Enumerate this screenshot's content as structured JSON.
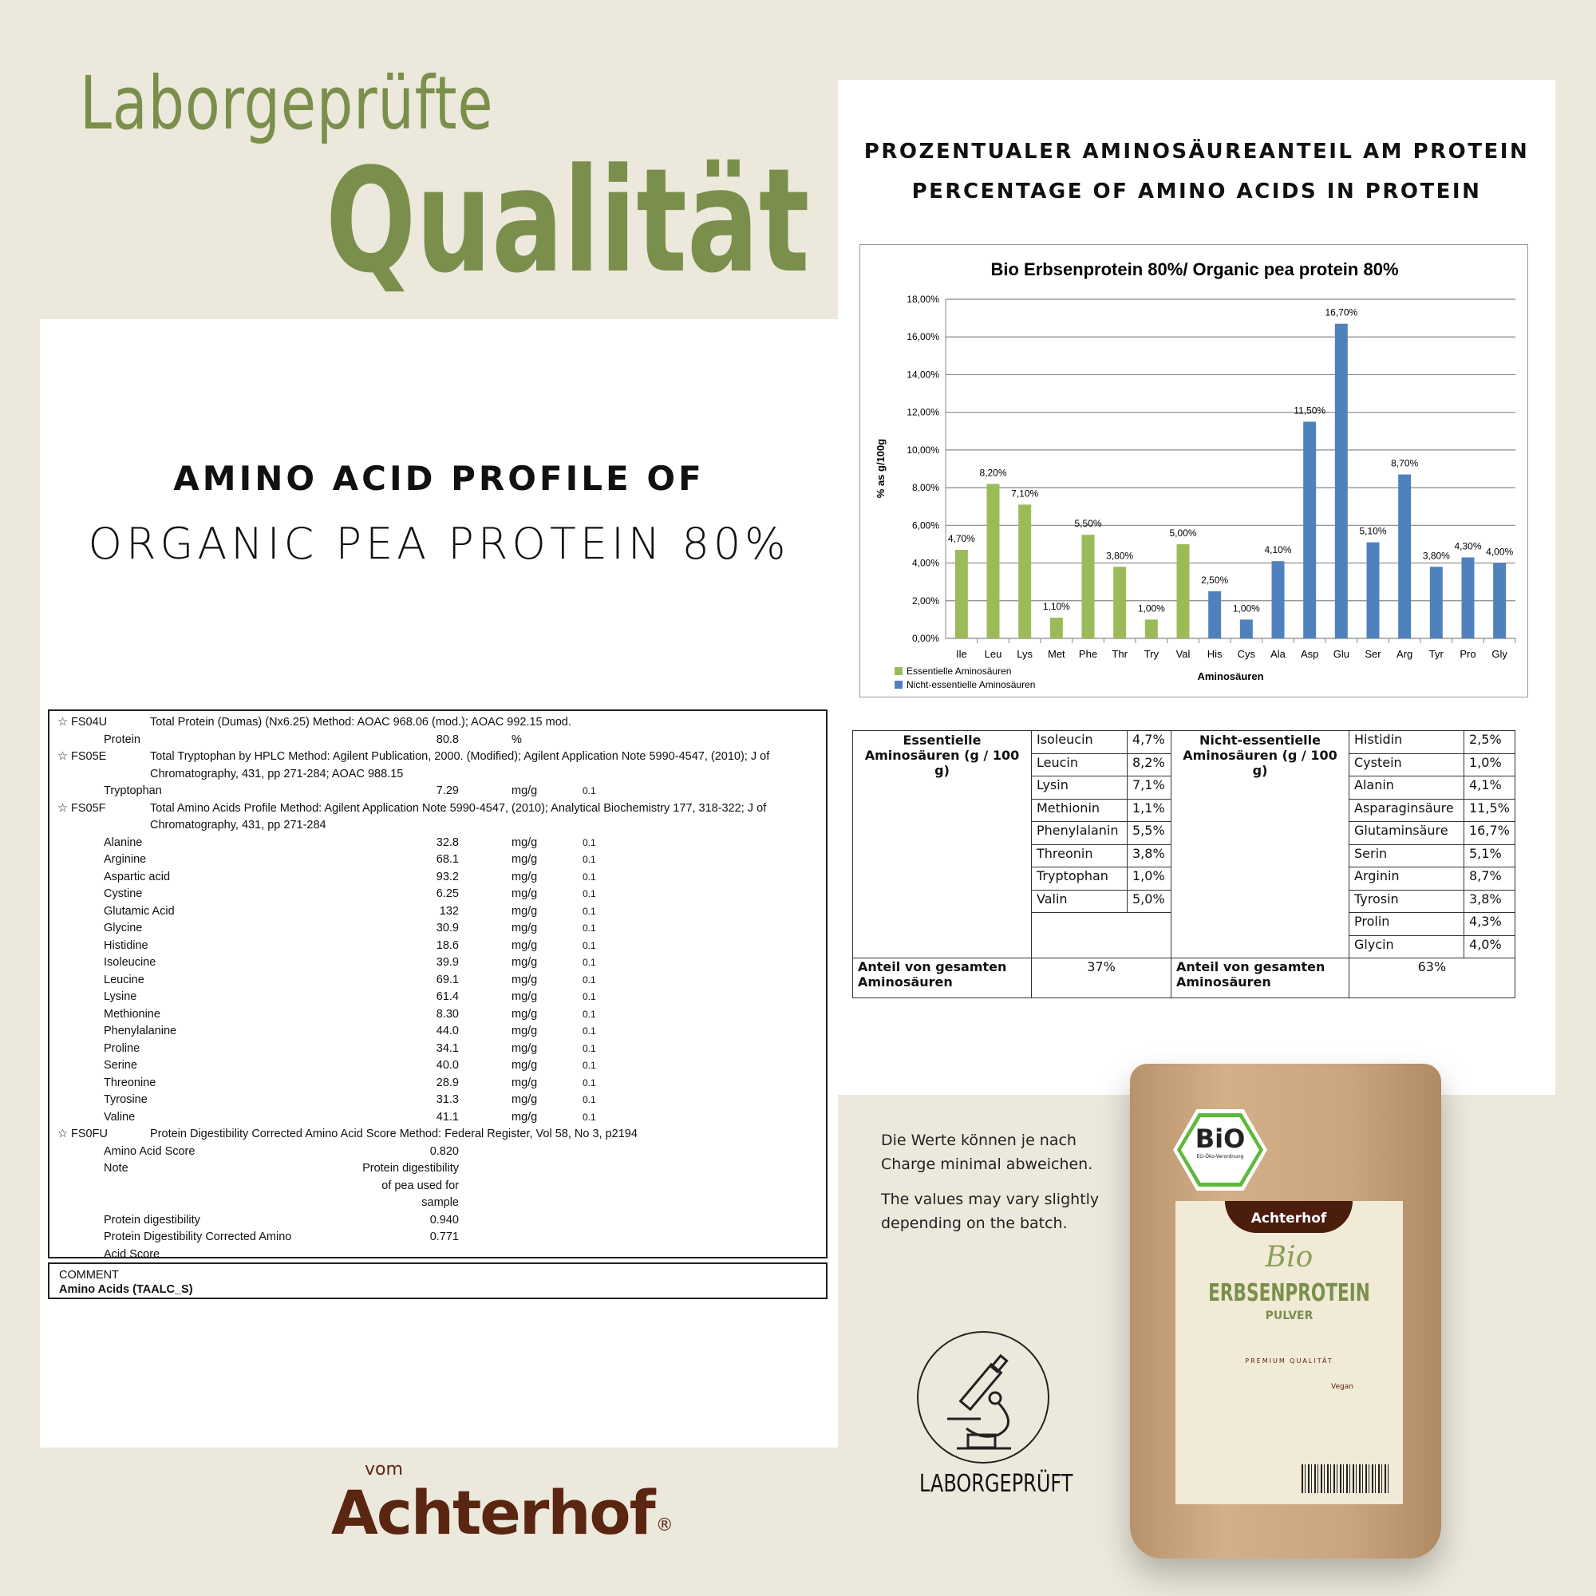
{
  "headline": {
    "line1": "Laborgeprüfte",
    "line2": "Qualität"
  },
  "left": {
    "title1": "AMINO ACID PROFILE OF",
    "title2": "ORGANIC PEA PROTEIN 80%"
  },
  "right": {
    "title1": "PROZENTUALER AMINOSÄUREANTEIL AM PROTEIN",
    "title2": "PERCENTAGE OF AMINO ACIDS IN PROTEIN"
  },
  "report": {
    "lines": [
      {
        "code": "☆ FS04U",
        "desc": "Total Protein (Dumas) (Nx6.25)    Method: AOAC 968.06 (mod.); AOAC 992.15 mod."
      },
      {
        "name": "Protein",
        "value": "80.8",
        "unit": "%",
        "loq": ""
      },
      {
        "code": "☆ FS05E",
        "desc": "Total Tryptophan by HPLC    Method: Agilent Publication, 2000. (Modified); Agilent Application Note 5990-4547, (2010); J of"
      },
      {
        "desc": "Chromatography, 431, pp 271-284; AOAC 988.15"
      },
      {
        "name": "Tryptophan",
        "value": "7.29",
        "unit": "mg/g",
        "loq": "0.1"
      },
      {
        "code": "☆ FS05F",
        "desc": "Total Amino Acids Profile    Method: Agilent Application Note 5990-4547, (2010); Analytical Biochemistry 177, 318-322; J of"
      },
      {
        "desc": "Chromatography, 431, pp 271-284"
      },
      {
        "name": "Alanine",
        "value": "32.8",
        "unit": "mg/g",
        "loq": "0.1"
      },
      {
        "name": "Arginine",
        "value": "68.1",
        "unit": "mg/g",
        "loq": "0.1"
      },
      {
        "name": "Aspartic acid",
        "value": "93.2",
        "unit": "mg/g",
        "loq": "0.1"
      },
      {
        "name": "Cystine",
        "value": "6.25",
        "unit": "mg/g",
        "loq": "0.1"
      },
      {
        "name": "Glutamic Acid",
        "value": "132",
        "unit": "mg/g",
        "loq": "0.1"
      },
      {
        "name": "Glycine",
        "value": "30.9",
        "unit": "mg/g",
        "loq": "0.1"
      },
      {
        "name": "Histidine",
        "value": "18.6",
        "unit": "mg/g",
        "loq": "0.1"
      },
      {
        "name": "Isoleucine",
        "value": "39.9",
        "unit": "mg/g",
        "loq": "0.1"
      },
      {
        "name": "Leucine",
        "value": "69.1",
        "unit": "mg/g",
        "loq": "0.1"
      },
      {
        "name": "Lysine",
        "value": "61.4",
        "unit": "mg/g",
        "loq": "0.1"
      },
      {
        "name": "Methionine",
        "value": "8.30",
        "unit": "mg/g",
        "loq": "0.1"
      },
      {
        "name": "Phenylalanine",
        "value": "44.0",
        "unit": "mg/g",
        "loq": "0.1"
      },
      {
        "name": "Proline",
        "value": "34.1",
        "unit": "mg/g",
        "loq": "0.1"
      },
      {
        "name": "Serine",
        "value": "40.0",
        "unit": "mg/g",
        "loq": "0.1"
      },
      {
        "name": "Threonine",
        "value": "28.9",
        "unit": "mg/g",
        "loq": "0.1"
      },
      {
        "name": "Tyrosine",
        "value": "31.3",
        "unit": "mg/g",
        "loq": "0.1"
      },
      {
        "name": "Valine",
        "value": "41.1",
        "unit": "mg/g",
        "loq": "0.1"
      },
      {
        "code": "☆ FS0FU",
        "desc": "Protein Digestibility Corrected Amino Acid Score    Method: Federal Register, Vol 58, No 3, p2194"
      },
      {
        "name": "Amino Acid Score",
        "value": "0.820"
      },
      {
        "name": "Note",
        "value": "Protein digestibility"
      },
      {
        "value": "of pea used for"
      },
      {
        "value": "sample"
      },
      {
        "name": "Protein digestibility",
        "value": "0.940"
      },
      {
        "name": "Protein Digestibility Corrected Amino",
        "value": "0.771"
      },
      {
        "name": "Acid Score"
      }
    ],
    "comment_label": "COMMENT",
    "comment_value": "Amino Acids (TAALC_S)"
  },
  "chart_data": {
    "type": "bar",
    "title": "Bio Erbsenprotein  80%/ Organic pea protein 80%",
    "xlabel": "Aminosäuren",
    "ylabel": "% as g/100g",
    "ylim": [
      0,
      18
    ],
    "yticks": [
      "0,00%",
      "2,00%",
      "4,00%",
      "6,00%",
      "8,00%",
      "10,00%",
      "12,00%",
      "14,00%",
      "16,00%",
      "18,00%"
    ],
    "grid": true,
    "legend_position": "bottom-left",
    "categories": [
      "Ile",
      "Leu",
      "Lys",
      "Met",
      "Phe",
      "Thr",
      "Try",
      "Val",
      "His",
      "Cys",
      "Ala",
      "Asp",
      "Glu",
      "Ser",
      "Arg",
      "Tyr",
      "Pro",
      "Gly"
    ],
    "values": [
      4.7,
      8.2,
      7.1,
      1.1,
      5.5,
      3.8,
      1.0,
      5.0,
      2.5,
      1.0,
      4.1,
      11.5,
      16.7,
      5.1,
      8.7,
      3.8,
      4.3,
      4.0
    ],
    "labels": [
      "4,70%",
      "8,20%",
      "7,10%",
      "1,10%",
      "5,50%",
      "3,80%",
      "1,00%",
      "5,00%",
      "2,50%",
      "1,00%",
      "4,10%",
      "11,50%",
      "16,70%",
      "5,10%",
      "8,70%",
      "3,80%",
      "4,30%",
      "4,00%"
    ],
    "group": [
      "e",
      "e",
      "e",
      "e",
      "e",
      "e",
      "e",
      "e",
      "n",
      "n",
      "n",
      "n",
      "n",
      "n",
      "n",
      "n",
      "n",
      "n"
    ],
    "series": [
      {
        "name": "Essentielle Aminosäuren",
        "color": "#9bbb59"
      },
      {
        "name": "Nicht-essentielle Aminosäuren",
        "color": "#4f81bd"
      }
    ]
  },
  "table": {
    "ess_header": "Essentielle Aminosäuren (g / 100 g)",
    "non_header": "Nicht-essentielle Aminosäuren (g / 100 g)",
    "essential": [
      [
        "Isoleucin",
        "4,7%"
      ],
      [
        "Leucin",
        "8,2%"
      ],
      [
        "Lysin",
        "7,1%"
      ],
      [
        "Methionin",
        "1,1%"
      ],
      [
        "Phenylalanin",
        "5,5%"
      ],
      [
        "Threonin",
        "3,8%"
      ],
      [
        "Tryptophan",
        "1,0%"
      ],
      [
        "Valin",
        "5,0%"
      ]
    ],
    "nonessential": [
      [
        "Histidin",
        "2,5%"
      ],
      [
        "Cystein",
        "1,0%"
      ],
      [
        "Alanin",
        "4,1%"
      ],
      [
        "Asparaginsäure",
        "11,5%"
      ],
      [
        "Glutaminsäure",
        "16,7%"
      ],
      [
        "Serin",
        "5,1%"
      ],
      [
        "Arginin",
        "8,7%"
      ],
      [
        "Tyrosin",
        "3,8%"
      ],
      [
        "Prolin",
        "4,3%"
      ],
      [
        "Glycin",
        "4,0%"
      ]
    ],
    "share_label": "Anteil von gesamten Aminosäuren",
    "ess_share": "37%",
    "non_share": "63%"
  },
  "note": {
    "de1": "Die Werte können je nach",
    "de2": "Charge minimal abweichen.",
    "en1": "The values may vary slightly",
    "en2": "depending on the batch."
  },
  "badge": {
    "label": "LABORGEPRÜFT",
    "icon": "microscope-icon"
  },
  "brand": {
    "small": "vom",
    "name": "Achterhof",
    "reg": "®"
  },
  "bag": {
    "bio_seal": "BiO",
    "bio_sub": "EG-Öko-Verordnung",
    "brand": "Achterhof",
    "script": "Bio",
    "product": "ERBSENPROTEIN",
    "sub": "PULVER",
    "premium": "PREMIUM QUALITÄT",
    "vegan": "Vegan"
  },
  "colors": {
    "green": "#7b8f4c",
    "brown": "#5a2612",
    "bg": "#ece8dc"
  }
}
